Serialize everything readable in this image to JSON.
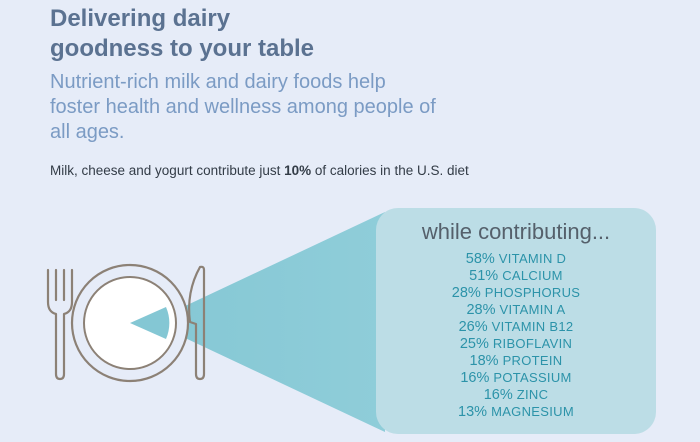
{
  "title_lines": [
    "Delivering dairy",
    "goodness to your table"
  ],
  "subtitle_lines": [
    "Nutrient-rich milk and dairy foods help",
    "foster health and wellness among people of",
    "all ages."
  ],
  "calorie_note": {
    "before": "Milk, cheese and yogurt contribute just ",
    "highlight": "10%",
    "after": " of calories in the U.S. diet"
  },
  "panel_heading": "while contributing...",
  "nutrients": [
    {
      "percent": "58%",
      "name": "VITAMIN D"
    },
    {
      "percent": "51%",
      "name": "CALCIUM"
    },
    {
      "percent": "28%",
      "name": "PHOSPHORUS"
    },
    {
      "percent": "28%",
      "name": "VITAMIN A"
    },
    {
      "percent": "26%",
      "name": "VITAMIN B12"
    },
    {
      "percent": "25%",
      "name": "RIBOFLAVIN"
    },
    {
      "percent": "18%",
      "name": "PROTEIN"
    },
    {
      "percent": "16%",
      "name": "POTASSIUM"
    },
    {
      "percent": "16%",
      "name": "ZINC"
    },
    {
      "percent": "13%",
      "name": "MAGNESIUM"
    }
  ],
  "colors": {
    "background": "#e6ecf8",
    "title": "#5b7291",
    "subtitle": "#7b9bc4",
    "panel": "#bcdde6",
    "wedge": "#84c7d4",
    "nutrient_text": "#2c93a9",
    "utensil_stroke": "#8c8176"
  },
  "icons": [
    "fork-icon",
    "plate-icon",
    "knife-icon"
  ]
}
